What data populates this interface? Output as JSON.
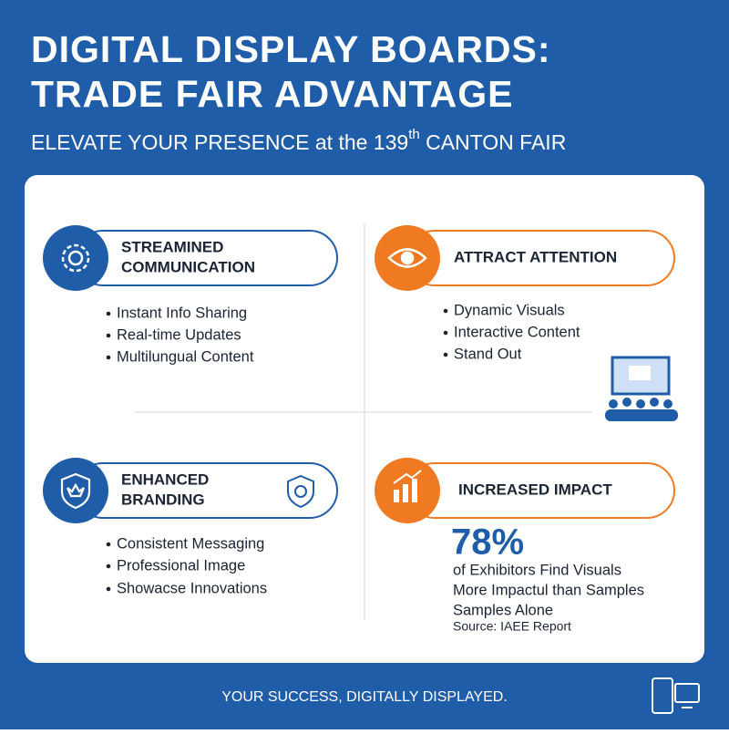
{
  "header": {
    "title_lines": [
      "DIGITAL DISPLAY BOARDS:",
      "TRADE FAIR ADVANTAGE"
    ],
    "subtitle": {
      "before": "ELEVATE YOUR PRESENCE at the 139",
      "sup": "th",
      "after": " CANTON FAIR"
    }
  },
  "sections": [
    {
      "title_lines": [
        "STREAMINED",
        "COMMUNICATION"
      ],
      "bullets": [
        "Instant Info Sharing",
        "Real-time Updates",
        "Multilungual Content"
      ]
    },
    {
      "title_lines": [
        "ATTRACT ATTENTION"
      ],
      "bullets": [
        "Dynamic Visuals",
        "Interactive Content",
        "Stand Out"
      ]
    },
    {
      "title_lines": [
        "ENHANCED",
        "BRANDING"
      ],
      "bullets": [
        "Consistent Messaging",
        "Professional Image",
        "Showacse Innovations"
      ]
    },
    {
      "title_lines": [
        "INCREASED IMPACT"
      ],
      "stat": "78%",
      "stat_lines": [
        "of Exhibitors Find Visuals",
        "More Impactul than Samples",
        "Samples Alone"
      ],
      "source": "Source: IAEE Report"
    }
  ],
  "footer": "YOUR SUCCESS, DIGITALLY DISPLAYED."
}
